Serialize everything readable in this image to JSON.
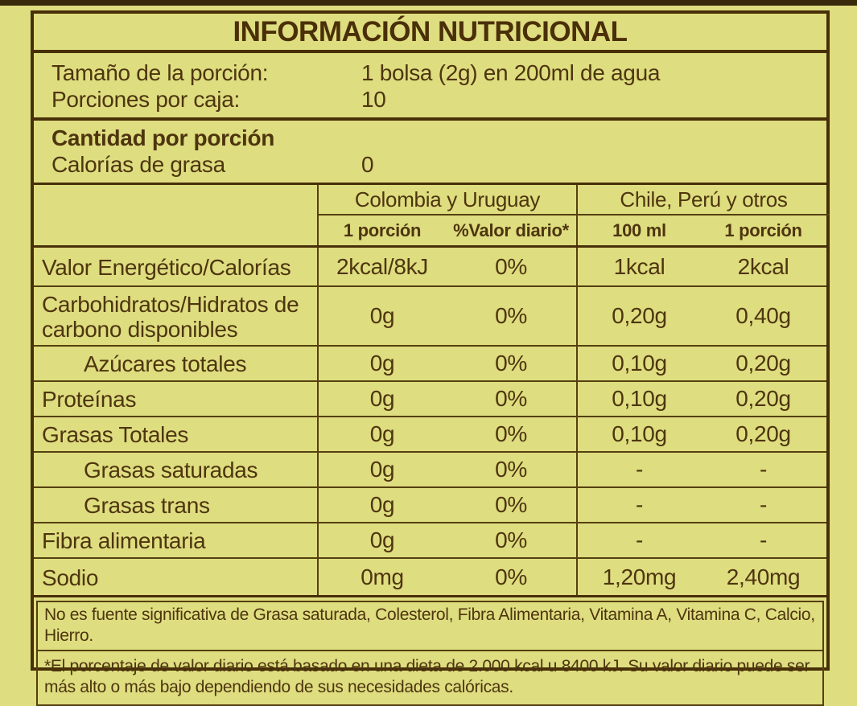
{
  "label": {
    "title": "INFORMACIÓN NUTRICIONAL",
    "serving": {
      "rows": [
        {
          "label": "Tamaño de la porción:",
          "value": "1 bolsa (2g) en 200ml de agua"
        },
        {
          "label": "Porciones por caja:",
          "value": "10"
        }
      ]
    },
    "amount_per_serving": {
      "heading": "Cantidad por porción",
      "sub_label": "Calorías de grasa",
      "sub_value": "0"
    },
    "column_groups": [
      {
        "label": "Colombia y Uruguay",
        "columns": [
          "1 porción",
          "%Valor diario*"
        ]
      },
      {
        "label": "Chile, Perú y otros",
        "columns": [
          "100 ml",
          "1 porción"
        ]
      }
    ],
    "rows": [
      {
        "name": "Valor Energético/Calorías",
        "values": [
          "2kcal/8kJ",
          "0%",
          "1kcal",
          "2kcal"
        ]
      },
      {
        "name": "Carbohidratos/Hidratos de carbono disponibles",
        "values": [
          "0g",
          "0%",
          "0,20g",
          "0,40g"
        ]
      },
      {
        "name": "Azúcares totales",
        "values": [
          "0g",
          "0%",
          "0,10g",
          "0,20g"
        ]
      },
      {
        "name": "Proteínas",
        "values": [
          "0g",
          "0%",
          "0,10g",
          "0,20g"
        ]
      },
      {
        "name": "Grasas Totales",
        "values": [
          "0g",
          "0%",
          "0,10g",
          "0,20g"
        ]
      },
      {
        "name": "Grasas saturadas",
        "values": [
          "0g",
          "0%",
          "-",
          "-"
        ]
      },
      {
        "name": "Grasas trans",
        "values": [
          "0g",
          "0%",
          "-",
          "-"
        ]
      },
      {
        "name": "Fibra alimentaria",
        "values": [
          "0g",
          "0%",
          "-",
          "-"
        ]
      },
      {
        "name": "Sodio",
        "values": [
          "0mg",
          "0%",
          "1,20mg",
          "2,40mg"
        ]
      }
    ],
    "notes": [
      "No es fuente significativa de Grasa saturada, Colesterol, Fibra Alimentaria, Vitamina A, Vitamina C, Calcio, Hierro.",
      "*El porcentaje de valor diario está basado en una dieta de 2.000 kcal u 8400 kJ. Su valor diario puede ser más alto o más bajo dependiendo de sus necesidades calóricas."
    ],
    "colors": {
      "background": "#dedd80",
      "text": "#4e350e",
      "border": "#472f08"
    }
  }
}
